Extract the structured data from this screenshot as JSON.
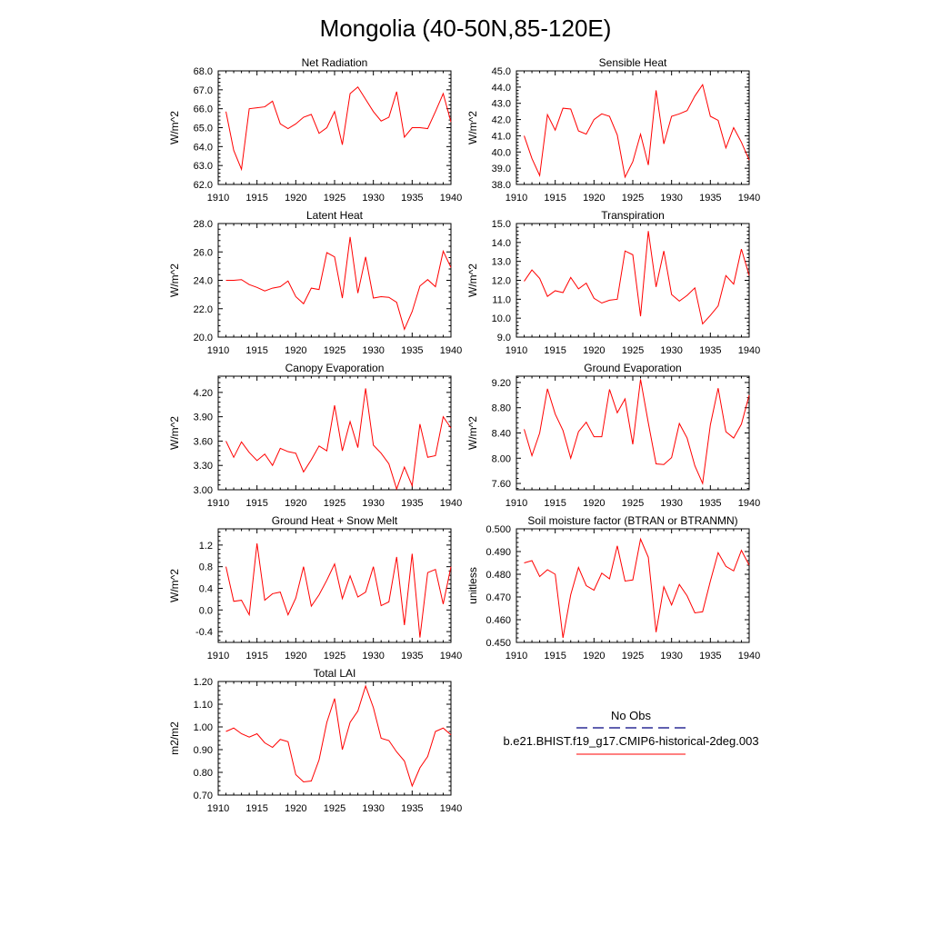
{
  "title": "Mongolia (40-50N,85-120E)",
  "legend": {
    "obs_label": "No Obs",
    "model_label": "b.e21.BHIST.f19_g17.CMIP6-historical-2deg.003",
    "obs_color": "#000080",
    "model_color": "#ff0000"
  },
  "chart_data": [
    {
      "type": "line",
      "title": "Net Radiation",
      "xlabel": "",
      "ylabel": "W/m^2",
      "xlim": [
        1910,
        1940
      ],
      "ylim": [
        62.0,
        68.0
      ],
      "x_ticks": [
        1910,
        1915,
        1920,
        1925,
        1930,
        1935,
        1940
      ],
      "y_ticks": [
        "62.0",
        "63.0",
        "64.0",
        "65.0",
        "66.0",
        "67.0",
        "68.0"
      ],
      "x": [
        1911,
        1912,
        1913,
        1914,
        1915,
        1916,
        1917,
        1918,
        1919,
        1920,
        1921,
        1922,
        1923,
        1924,
        1925,
        1926,
        1927,
        1928,
        1929,
        1930,
        1931,
        1932,
        1933,
        1934,
        1935,
        1936,
        1937,
        1938,
        1939,
        1940
      ],
      "series": [
        {
          "values": [
            65.85,
            63.8,
            62.8,
            66.0,
            66.05,
            66.1,
            66.4,
            65.2,
            64.95,
            65.2,
            65.55,
            65.7,
            64.7,
            65.0,
            65.85,
            64.1,
            66.8,
            67.15,
            66.5,
            65.85,
            65.35,
            65.55,
            66.9,
            64.5,
            65.0,
            65.0,
            64.95,
            65.85,
            66.8,
            65.3
          ],
          "color": "#ff0000"
        }
      ]
    },
    {
      "type": "line",
      "title": "Sensible Heat",
      "xlabel": "",
      "ylabel": "W/m^2",
      "xlim": [
        1910,
        1940
      ],
      "ylim": [
        38.0,
        45.0
      ],
      "x_ticks": [
        1910,
        1915,
        1920,
        1925,
        1930,
        1935,
        1940
      ],
      "y_ticks": [
        "38.0",
        "39.0",
        "40.0",
        "41.0",
        "42.0",
        "43.0",
        "44.0",
        "45.0"
      ],
      "x": [
        1911,
        1912,
        1913,
        1914,
        1915,
        1916,
        1917,
        1918,
        1919,
        1920,
        1921,
        1922,
        1923,
        1924,
        1925,
        1926,
        1927,
        1928,
        1929,
        1930,
        1931,
        1932,
        1933,
        1934,
        1935,
        1936,
        1937,
        1938,
        1939,
        1940
      ],
      "series": [
        {
          "values": [
            41.0,
            39.6,
            38.55,
            42.3,
            41.35,
            42.7,
            42.65,
            41.3,
            41.1,
            42.0,
            42.35,
            42.2,
            41.05,
            38.45,
            39.4,
            41.1,
            39.2,
            43.8,
            40.5,
            42.2,
            42.35,
            42.55,
            43.45,
            44.15,
            42.2,
            41.95,
            40.25,
            41.5,
            40.6,
            39.5
          ],
          "color": "#ff0000"
        }
      ]
    },
    {
      "type": "line",
      "title": "Latent Heat",
      "xlabel": "",
      "ylabel": "W/m^2",
      "xlim": [
        1910,
        1940
      ],
      "ylim": [
        20.0,
        28.0
      ],
      "x_ticks": [
        1910,
        1915,
        1920,
        1925,
        1930,
        1935,
        1940
      ],
      "y_ticks": [
        "20.0",
        "22.0",
        "24.0",
        "26.0",
        "28.0"
      ],
      "x": [
        1911,
        1912,
        1913,
        1914,
        1915,
        1916,
        1917,
        1918,
        1919,
        1920,
        1921,
        1922,
        1923,
        1924,
        1925,
        1926,
        1927,
        1928,
        1929,
        1930,
        1931,
        1932,
        1933,
        1934,
        1935,
        1936,
        1937,
        1938,
        1939,
        1940
      ],
      "series": [
        {
          "values": [
            24.0,
            24.0,
            24.05,
            23.7,
            23.5,
            23.25,
            23.45,
            23.55,
            23.95,
            22.85,
            22.35,
            23.45,
            23.35,
            25.95,
            25.65,
            22.75,
            27.05,
            23.1,
            25.65,
            22.75,
            22.85,
            22.8,
            22.45,
            20.55,
            21.8,
            23.6,
            24.05,
            23.55,
            26.05,
            24.9
          ],
          "color": "#ff0000"
        }
      ]
    },
    {
      "type": "line",
      "title": "Transpiration",
      "xlabel": "",
      "ylabel": "W/m^2",
      "xlim": [
        1910,
        1940
      ],
      "ylim": [
        9.0,
        15.0
      ],
      "x_ticks": [
        1910,
        1915,
        1920,
        1925,
        1930,
        1935,
        1940
      ],
      "y_ticks": [
        "9.0",
        "10.0",
        "11.0",
        "12.0",
        "13.0",
        "14.0",
        "15.0"
      ],
      "x": [
        1911,
        1912,
        1913,
        1914,
        1915,
        1916,
        1917,
        1918,
        1919,
        1920,
        1921,
        1922,
        1923,
        1924,
        1925,
        1926,
        1927,
        1928,
        1929,
        1930,
        1931,
        1932,
        1933,
        1934,
        1935,
        1936,
        1937,
        1938,
        1939,
        1940
      ],
      "series": [
        {
          "values": [
            11.95,
            12.55,
            12.1,
            11.15,
            11.45,
            11.35,
            12.15,
            11.55,
            11.85,
            11.05,
            10.8,
            10.95,
            11.0,
            13.55,
            13.35,
            10.1,
            14.6,
            11.65,
            13.55,
            11.25,
            10.9,
            11.2,
            11.6,
            9.7,
            10.15,
            10.65,
            12.25,
            11.8,
            13.65,
            12.25
          ],
          "color": "#ff0000"
        }
      ]
    },
    {
      "type": "line",
      "title": "Canopy Evaporation",
      "xlabel": "",
      "ylabel": "W/m^2",
      "xlim": [
        1910,
        1940
      ],
      "ylim": [
        3.0,
        4.4
      ],
      "x_ticks": [
        1910,
        1915,
        1920,
        1925,
        1930,
        1935,
        1940
      ],
      "y_ticks": [
        "3.00",
        "3.30",
        "3.60",
        "3.90",
        "4.20"
      ],
      "x": [
        1911,
        1912,
        1913,
        1914,
        1915,
        1916,
        1917,
        1918,
        1919,
        1920,
        1921,
        1922,
        1923,
        1924,
        1925,
        1926,
        1927,
        1928,
        1929,
        1930,
        1931,
        1932,
        1933,
        1934,
        1935,
        1936,
        1937,
        1938,
        1939,
        1940
      ],
      "series": [
        {
          "values": [
            3.6,
            3.4,
            3.59,
            3.46,
            3.36,
            3.44,
            3.3,
            3.51,
            3.47,
            3.45,
            3.22,
            3.37,
            3.54,
            3.48,
            4.04,
            3.48,
            3.84,
            3.52,
            4.25,
            3.55,
            3.45,
            3.32,
            3.01,
            3.28,
            3.05,
            3.81,
            3.4,
            3.42,
            3.9,
            3.76
          ],
          "color": "#ff0000"
        }
      ]
    },
    {
      "type": "line",
      "title": "Ground Evaporation",
      "xlabel": "",
      "ylabel": "W/m^2",
      "xlim": [
        1910,
        1940
      ],
      "ylim": [
        7.5,
        9.3
      ],
      "x_ticks": [
        1910,
        1915,
        1920,
        1925,
        1930,
        1935,
        1940
      ],
      "y_ticks": [
        "7.60",
        "8.00",
        "8.40",
        "8.80",
        "9.20"
      ],
      "x": [
        1911,
        1912,
        1913,
        1914,
        1915,
        1916,
        1917,
        1918,
        1919,
        1920,
        1921,
        1922,
        1923,
        1924,
        1925,
        1926,
        1927,
        1928,
        1929,
        1930,
        1931,
        1932,
        1933,
        1934,
        1935,
        1936,
        1937,
        1938,
        1939,
        1940
      ],
      "series": [
        {
          "values": [
            8.46,
            8.04,
            8.4,
            9.1,
            8.7,
            8.44,
            8.0,
            8.42,
            8.57,
            8.34,
            8.34,
            9.09,
            8.72,
            8.94,
            8.22,
            9.25,
            8.56,
            7.91,
            7.9,
            8.01,
            8.55,
            8.32,
            7.88,
            7.6,
            8.53,
            9.11,
            8.42,
            8.32,
            8.54,
            9.0
          ],
          "color": "#ff0000"
        }
      ]
    },
    {
      "type": "line",
      "title": "Ground Heat + Snow Melt",
      "xlabel": "",
      "ylabel": "W/m^2",
      "xlim": [
        1910,
        1940
      ],
      "ylim": [
        -0.6,
        1.5
      ],
      "x_ticks": [
        1910,
        1915,
        1920,
        1925,
        1930,
        1935,
        1940
      ],
      "y_ticks": [
        "-0.4",
        "0.0",
        "0.4",
        "0.8",
        "1.2"
      ],
      "x": [
        1911,
        1912,
        1913,
        1914,
        1915,
        1916,
        1917,
        1918,
        1919,
        1920,
        1921,
        1922,
        1923,
        1924,
        1925,
        1926,
        1927,
        1928,
        1929,
        1930,
        1931,
        1932,
        1933,
        1934,
        1935,
        1936,
        1937,
        1938,
        1939,
        1940
      ],
      "series": [
        {
          "values": [
            0.8,
            0.16,
            0.18,
            -0.09,
            1.23,
            0.18,
            0.3,
            0.33,
            -0.09,
            0.22,
            0.8,
            0.07,
            0.28,
            0.55,
            0.85,
            0.21,
            0.63,
            0.24,
            0.33,
            0.8,
            0.08,
            0.15,
            0.98,
            -0.28,
            1.04,
            -0.51,
            0.69,
            0.75,
            0.11,
            0.8
          ],
          "color": "#ff0000"
        }
      ]
    },
    {
      "type": "line",
      "title": "Soil moisture factor (BTRAN or BTRANMN)",
      "xlabel": "",
      "ylabel": "unitless",
      "xlim": [
        1910,
        1940
      ],
      "ylim": [
        0.45,
        0.5
      ],
      "x_ticks": [
        1910,
        1915,
        1920,
        1925,
        1930,
        1935,
        1940
      ],
      "y_ticks": [
        "0.450",
        "0.460",
        "0.470",
        "0.480",
        "0.490",
        "0.500"
      ],
      "x": [
        1911,
        1912,
        1913,
        1914,
        1915,
        1916,
        1917,
        1918,
        1919,
        1920,
        1921,
        1922,
        1923,
        1924,
        1925,
        1926,
        1927,
        1928,
        1929,
        1930,
        1931,
        1932,
        1933,
        1934,
        1935,
        1936,
        1937,
        1938,
        1939,
        1940
      ],
      "series": [
        {
          "values": [
            0.485,
            0.486,
            0.479,
            0.482,
            0.48,
            0.452,
            0.471,
            0.483,
            0.475,
            0.473,
            0.4805,
            0.478,
            0.4925,
            0.477,
            0.4775,
            0.4955,
            0.4875,
            0.4545,
            0.4745,
            0.4665,
            0.4755,
            0.4705,
            0.463,
            0.4635,
            0.477,
            0.4895,
            0.4835,
            0.4815,
            0.4905,
            0.484
          ],
          "color": "#ff0000"
        }
      ]
    },
    {
      "type": "line",
      "title": "Total LAI",
      "xlabel": "",
      "ylabel": "m2/m2",
      "xlim": [
        1910,
        1940
      ],
      "ylim": [
        0.7,
        1.2
      ],
      "x_ticks": [
        1910,
        1915,
        1920,
        1925,
        1930,
        1935,
        1940
      ],
      "y_ticks": [
        "0.70",
        "0.80",
        "0.90",
        "1.00",
        "1.10",
        "1.20"
      ],
      "x": [
        1911,
        1912,
        1913,
        1914,
        1915,
        1916,
        1917,
        1918,
        1919,
        1920,
        1921,
        1922,
        1923,
        1924,
        1925,
        1926,
        1927,
        1928,
        1929,
        1930,
        1931,
        1932,
        1933,
        1934,
        1935,
        1936,
        1937,
        1938,
        1939,
        1940
      ],
      "series": [
        {
          "values": [
            0.98,
            0.995,
            0.97,
            0.955,
            0.97,
            0.93,
            0.91,
            0.945,
            0.935,
            0.79,
            0.758,
            0.762,
            0.855,
            1.02,
            1.125,
            0.9,
            1.02,
            1.07,
            1.18,
            1.085,
            0.95,
            0.94,
            0.89,
            0.85,
            0.74,
            0.82,
            0.87,
            0.98,
            0.995,
            0.965
          ],
          "color": "#ff0000"
        }
      ]
    }
  ]
}
